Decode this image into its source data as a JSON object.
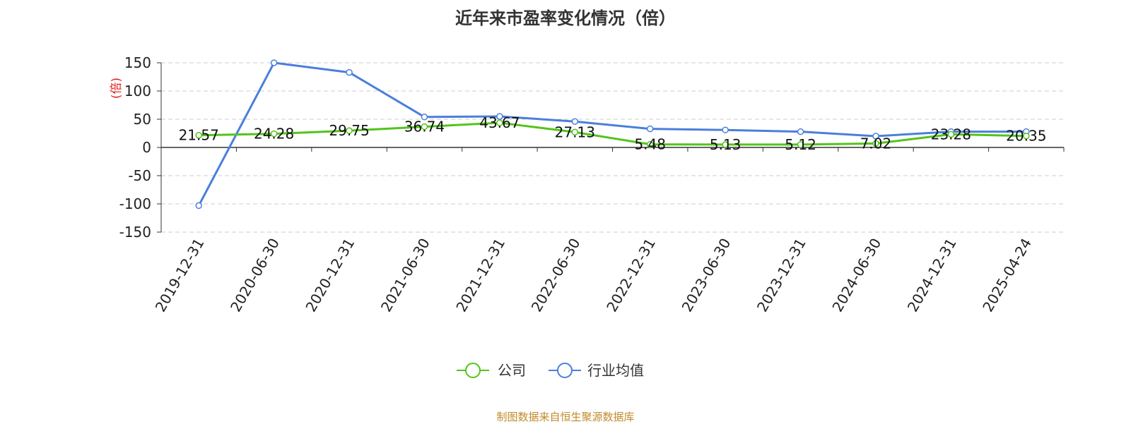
{
  "chart_data": {
    "type": "line",
    "title": "近年来市盈率变化情况（倍）",
    "ylabel": "(倍)",
    "xlabel": "",
    "categories": [
      "2019-12-31",
      "2020-06-30",
      "2020-12-31",
      "2021-06-30",
      "2021-12-31",
      "2022-06-30",
      "2022-12-31",
      "2023-06-30",
      "2023-12-31",
      "2024-06-30",
      "2024-12-31",
      "2025-04-24"
    ],
    "series": [
      {
        "name": "公司",
        "color": "#52c41a",
        "values": [
          21.57,
          24.28,
          29.75,
          36.74,
          43.67,
          27.13,
          5.48,
          5.13,
          5.12,
          7.02,
          23.28,
          20.35
        ],
        "labels": [
          "21.57",
          "24.28",
          "29.75",
          "36.74",
          "43.67",
          "27.13",
          "5.48",
          "5.13",
          "5.12",
          "7.02",
          "23.28",
          "20.35"
        ]
      },
      {
        "name": "行业均值",
        "color": "#4a7fdb",
        "values": [
          -103,
          150,
          133,
          54,
          55,
          46,
          33,
          31,
          28,
          20,
          28,
          28
        ]
      }
    ],
    "ylim": [
      -150,
      150
    ],
    "yticks": [
      150,
      100,
      50,
      0,
      -50,
      -100,
      -150
    ],
    "ytick_labels": [
      "150",
      "100",
      "50",
      "0",
      "-50",
      "-100",
      "-150"
    ],
    "grid": true,
    "legend_position": "bottom-center"
  },
  "source_text": "制图数据来自恒生聚源数据库",
  "colors": {
    "ylabel": "#e02020",
    "source": "#c08a2a",
    "grid": "#cccccc"
  }
}
